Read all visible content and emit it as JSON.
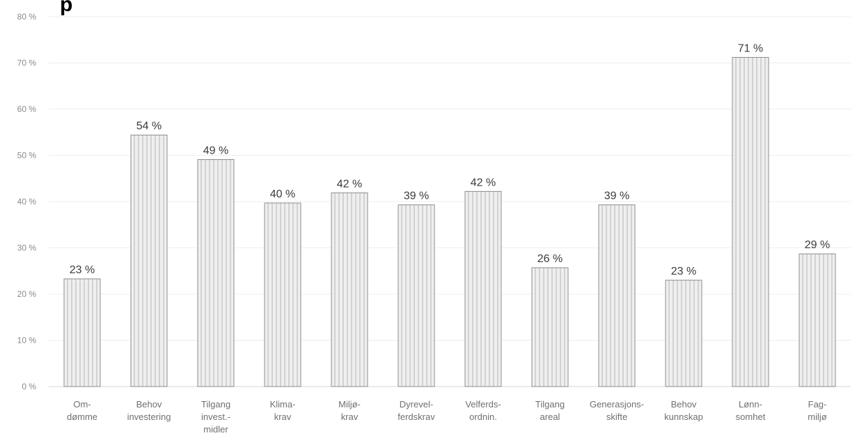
{
  "title_fragment": "p",
  "chart_data": {
    "type": "bar",
    "categories": [
      [
        "Om-",
        "dømme"
      ],
      [
        "Behov",
        "investering"
      ],
      [
        "Tilgang",
        "invest.-",
        "midler"
      ],
      [
        "Klima-",
        "krav"
      ],
      [
        "Miljø-",
        "krav"
      ],
      [
        "Dyrevel-",
        "ferdskrav"
      ],
      [
        "Velferds-",
        "ordnin."
      ],
      [
        "Tilgang",
        "areal"
      ],
      [
        "Generasjons-",
        "skifte"
      ],
      [
        "Behov",
        "kunnskap"
      ],
      [
        "Lønn-",
        "somhet"
      ],
      [
        "Fag-",
        "miljø"
      ]
    ],
    "values": [
      23.3,
      54.4,
      49.1,
      39.7,
      41.9,
      39.3,
      42.2,
      25.7,
      39.3,
      23.0,
      71.2,
      28.7
    ],
    "data_labels": [
      "23 %",
      "54 %",
      "49 %",
      "40 %",
      "42 %",
      "39 %",
      "42 %",
      "26 %",
      "39 %",
      "23 %",
      "71 %",
      "29 %"
    ],
    "y_ticks": [
      "0 %",
      "10 %",
      "20 %",
      "30 %",
      "40 %",
      "50 %",
      "60 %",
      "70 %",
      "80 %"
    ],
    "ylim": [
      0,
      80
    ],
    "grid": true,
    "bar_color": "#efefef",
    "bar_stripe_color": "#d2d2d2",
    "bar_edge_color": "#8c8c8c"
  }
}
